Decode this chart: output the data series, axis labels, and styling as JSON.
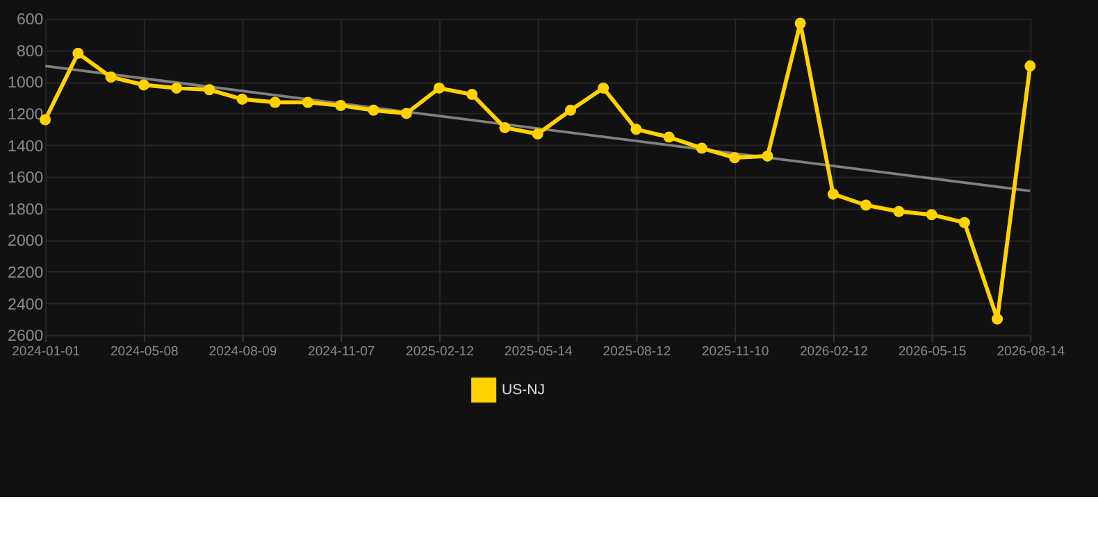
{
  "chart_data": {
    "type": "line",
    "categories": [
      "2024-01-01",
      null,
      null,
      "2024-05-08",
      null,
      null,
      "2024-08-09",
      null,
      null,
      "2024-11-07",
      null,
      null,
      "2025-02-12",
      null,
      null,
      "2025-05-14",
      null,
      null,
      "2025-08-12",
      null,
      null,
      "2025-11-10",
      null,
      null,
      "2026-02-12",
      null,
      null,
      "2026-05-15",
      null,
      null,
      "2026-08-14"
    ],
    "series": [
      {
        "name": "US-NJ",
        "color": "#ffd200",
        "marker": "circle",
        "values": [
          1240,
          820,
          970,
          1020,
          1040,
          1050,
          1110,
          1130,
          1130,
          1150,
          1180,
          1200,
          1040,
          1080,
          1290,
          1330,
          1180,
          1040,
          1300,
          1350,
          1420,
          1480,
          1470,
          630,
          1710,
          1780,
          1820,
          1840,
          1890,
          2500,
          900
        ]
      },
      {
        "type": "line",
        "color": "#808080",
        "marker": "none",
        "values": [
          900,
          null,
          null,
          null,
          null,
          null,
          null,
          null,
          null,
          null,
          null,
          null,
          null,
          null,
          null,
          null,
          null,
          null,
          null,
          null,
          null,
          null,
          null,
          null,
          null,
          null,
          null,
          null,
          null,
          null,
          1690
        ]
      }
    ],
    "ylim": [
      2600,
      600
    ],
    "yticks": [
      600,
      800,
      1000,
      1200,
      1400,
      1600,
      1800,
      2000,
      2200,
      2400,
      2600
    ],
    "grid": true,
    "legend": "bottom"
  }
}
